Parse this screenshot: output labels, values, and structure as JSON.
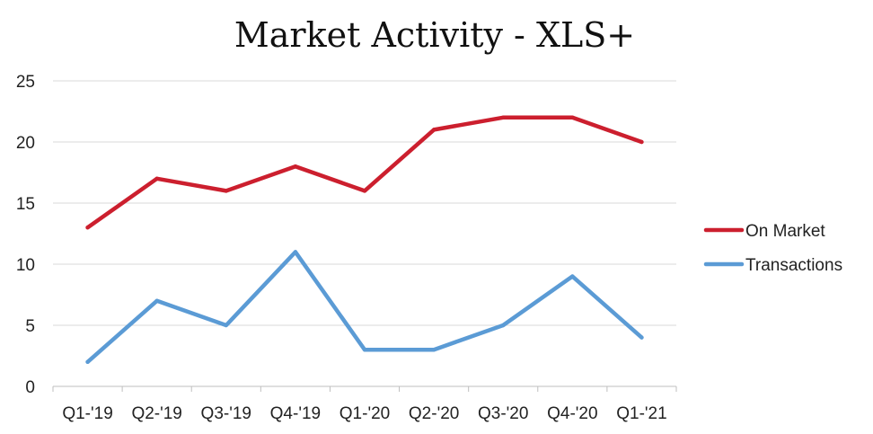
{
  "chart_data": {
    "type": "line",
    "title": "Market Activity - XLS+",
    "xlabel": "",
    "ylabel": "",
    "categories": [
      "Q1-'19",
      "Q2-'19",
      "Q3-'19",
      "Q4-'19",
      "Q1-'20",
      "Q2-'20",
      "Q3-'20",
      "Q4-'20",
      "Q1-'21"
    ],
    "ylim": [
      0,
      25
    ],
    "yticks": [
      "0",
      "5",
      "10",
      "15",
      "20",
      "25"
    ],
    "grid": true,
    "legend_position": "right",
    "series": [
      {
        "name": "On Market",
        "color": "#cc1f2e",
        "values": [
          13,
          17,
          16,
          18,
          16,
          21,
          22,
          22,
          20
        ]
      },
      {
        "name": "Transactions",
        "color": "#5b9bd5",
        "values": [
          2,
          7,
          5,
          11,
          3,
          3,
          5,
          9,
          4
        ]
      }
    ]
  }
}
